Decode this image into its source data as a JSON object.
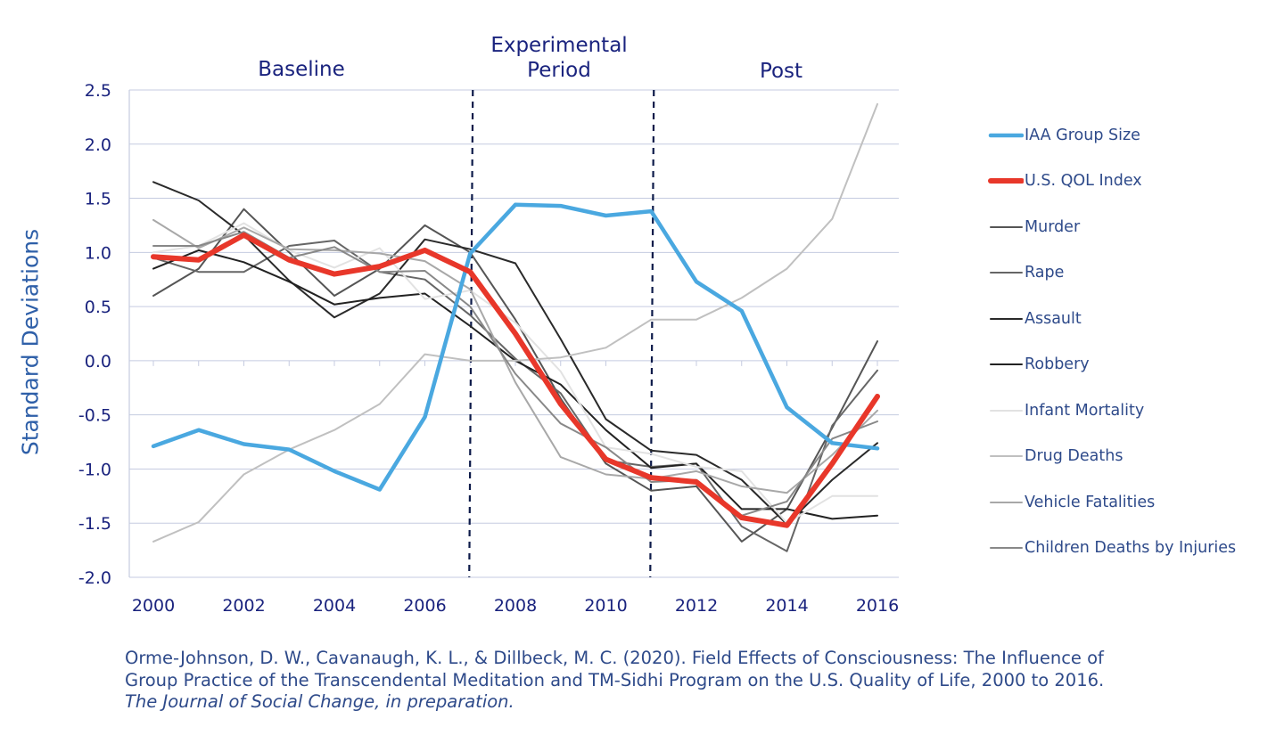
{
  "periods": {
    "baseline": "Baseline",
    "experimental_line1": "Experimental",
    "experimental_line2": "Period",
    "post": "Post"
  },
  "y_axis_title": "Standard Deviations",
  "citation": {
    "line1": "Orme-Johnson, D. W., Cavanaugh, K. L., & Dillbeck, M. C. (2020). Field Effects of Consciousness: The Influence of",
    "line2": "Group Practice of the Transcendental Meditation and TM-Sidhi Program on the U.S. Quality of Life, 2000 to 2016.",
    "line3": "The Journal of Social Change, in preparation."
  },
  "colors": {
    "axis_text": "#1a237e",
    "grid": "#c5cbe0",
    "iaa": "#4aa8e0",
    "qol": "#e8372a"
  },
  "chart_data": {
    "type": "line",
    "title": "",
    "xlabel": "",
    "ylabel": "Standard Deviations",
    "x": [
      2000,
      2001,
      2002,
      2003,
      2004,
      2005,
      2006,
      2007,
      2008,
      2009,
      2010,
      2011,
      2012,
      2013,
      2014,
      2015,
      2016
    ],
    "xticks": [
      "2000",
      "2002",
      "2004",
      "2006",
      "2008",
      "2010",
      "2012",
      "2014",
      "2016"
    ],
    "yticks": [
      "2.5",
      "2.0",
      "1.5",
      "1.0",
      "0.5",
      "0.0",
      "-0.5",
      "-1.0",
      "-1.5",
      "-2.0"
    ],
    "ylim": [
      -2.0,
      2.5
    ],
    "xlim": [
      2000,
      2016
    ],
    "grid": true,
    "legend_position": "right",
    "period_boundaries": [
      2007,
      2011
    ],
    "series": [
      {
        "name": "IAA Group Size",
        "color": "#4aa8e0",
        "width": 4.5,
        "values": [
          -0.79,
          -0.64,
          -0.77,
          -0.82,
          -1.02,
          -1.19,
          -0.52,
          0.99,
          1.44,
          1.43,
          1.34,
          1.38,
          0.73,
          0.46,
          -0.43,
          -0.76,
          -0.81
        ]
      },
      {
        "name": "U.S. QOL Index",
        "color": "#e8372a",
        "width": 6,
        "values": [
          0.96,
          0.93,
          1.16,
          0.93,
          0.8,
          0.87,
          1.02,
          0.82,
          0.25,
          -0.4,
          -0.91,
          -1.08,
          -1.12,
          -1.45,
          -1.52,
          -0.95,
          -0.33
        ]
      },
      {
        "name": "Murder",
        "color": "#555555",
        "width": 2,
        "values": [
          0.6,
          0.85,
          1.4,
          1.0,
          0.6,
          0.85,
          1.25,
          1.0,
          0.38,
          -0.35,
          -0.95,
          -1.2,
          -1.16,
          -1.67,
          -1.37,
          -0.62,
          0.18
        ]
      },
      {
        "name": "Rape",
        "color": "#666666",
        "width": 2,
        "values": [
          0.95,
          0.82,
          0.82,
          1.06,
          1.11,
          0.82,
          0.75,
          0.42,
          0.02,
          -0.3,
          -0.92,
          -0.98,
          -0.95,
          -1.53,
          -1.76,
          -0.6,
          -0.09
        ]
      },
      {
        "name": "Assault",
        "color": "#2a2a2a",
        "width": 2,
        "values": [
          1.65,
          1.48,
          1.16,
          0.74,
          0.4,
          0.62,
          1.12,
          1.03,
          0.9,
          0.2,
          -0.54,
          -0.83,
          -0.87,
          -1.1,
          -1.51,
          -1.1,
          -0.76
        ]
      },
      {
        "name": "Robbery",
        "color": "#222222",
        "width": 2,
        "values": [
          0.85,
          1.02,
          0.91,
          0.73,
          0.52,
          0.58,
          0.62,
          0.32,
          0.0,
          -0.22,
          -0.64,
          -0.99,
          -0.95,
          -1.37,
          -1.37,
          -1.46,
          -1.43
        ]
      },
      {
        "name": "Infant Mortality",
        "color": "#e2e2e2",
        "width": 2,
        "values": [
          1.0,
          1.06,
          1.27,
          1.02,
          0.86,
          1.04,
          0.57,
          0.65,
          0.35,
          -0.1,
          -0.8,
          -0.86,
          -0.98,
          -1.02,
          -1.5,
          -1.25,
          -1.25
        ]
      },
      {
        "name": "Drug Deaths",
        "color": "#c0c0c0",
        "width": 2,
        "values": [
          -1.67,
          -1.49,
          -1.05,
          -0.82,
          -0.64,
          -0.4,
          0.06,
          0.0,
          0.0,
          0.03,
          0.12,
          0.38,
          0.38,
          0.58,
          0.85,
          1.31,
          2.37
        ]
      },
      {
        "name": "Vehicle Fatalities",
        "color": "#a8a8a8",
        "width": 2,
        "values": [
          1.3,
          1.04,
          1.23,
          1.03,
          1.02,
          0.99,
          0.92,
          0.66,
          -0.2,
          -0.89,
          -1.05,
          -1.09,
          -1.02,
          -1.16,
          -1.22,
          -0.87,
          -0.46
        ]
      },
      {
        "name": "Children Deaths by Injuries",
        "color": "#888888",
        "width": 2,
        "values": [
          1.06,
          1.06,
          1.19,
          0.95,
          1.05,
          0.82,
          0.83,
          0.5,
          -0.12,
          -0.58,
          -0.8,
          -1.12,
          -1.1,
          -1.43,
          -1.3,
          -0.72,
          -0.56
        ]
      }
    ]
  }
}
